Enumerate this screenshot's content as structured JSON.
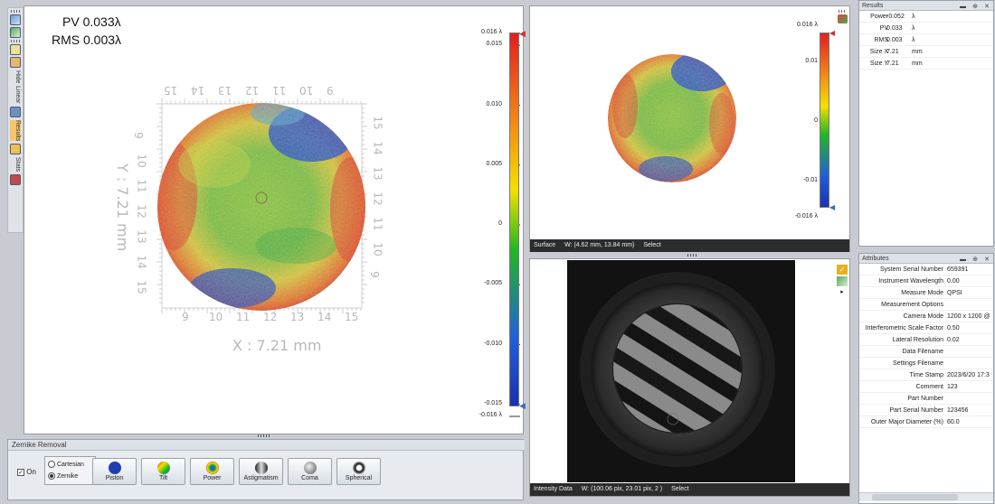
{
  "left_toolbar": {
    "items": [
      {
        "label": "Hide"
      },
      {
        "label": "Linear"
      },
      {
        "label": "Results",
        "selected": true
      },
      {
        "label": "Stats"
      }
    ]
  },
  "main_view": {
    "pv_text": "PV 0.033λ",
    "rms_text": "RMS 0.003λ",
    "x_axis_label": "X : 7.21 mm",
    "y_axis_label": "Y : 7.21 mm",
    "x_ticks": [
      "9",
      "10",
      "11",
      "12",
      "13",
      "14",
      "15"
    ],
    "x_ticks_top": [
      "15",
      "14",
      "13",
      "12",
      "11",
      "10",
      "9"
    ],
    "y_ticks": [
      "9",
      "10",
      "11",
      "12",
      "13",
      "14",
      "15"
    ],
    "y_ticks_right": [
      "15",
      "14",
      "13",
      "12",
      "11",
      "10",
      "9"
    ],
    "colorbar_ticks": [
      "0.016 λ",
      "0.015",
      "0.010",
      "0.005",
      "0",
      "-0.005",
      "-0.010",
      "-0.015",
      "-0.016 λ"
    ]
  },
  "zernike": {
    "title": "Zernike Removal",
    "on_label": "On",
    "on_checked": true,
    "modes": [
      {
        "label": "Cartesian",
        "selected": false
      },
      {
        "label": "Zernike",
        "selected": true
      }
    ],
    "buttons": [
      {
        "label": "Piston",
        "icon": "piston-icon"
      },
      {
        "label": "Tilt",
        "icon": "tilt-icon"
      },
      {
        "label": "Power",
        "icon": "power-icon"
      },
      {
        "label": "Astigmatism",
        "icon": "astigmatism-icon"
      },
      {
        "label": "Coma",
        "icon": "coma-icon"
      },
      {
        "label": "Spherical",
        "icon": "spherical-icon"
      }
    ]
  },
  "surface": {
    "status": [
      "Surface",
      "W: (4.62 mm, 13.84 mm)",
      "Select"
    ],
    "colorbar_ticks": [
      "0.016 λ",
      "0.01",
      "0",
      "-0.01",
      "-0.016 λ"
    ]
  },
  "intensity": {
    "status": [
      "Intensity Data",
      "W: (100.06 pix, 23.01 pix, 2 )",
      "Select"
    ]
  },
  "results": {
    "title": "Results",
    "rows": [
      {
        "key": "Power",
        "value": "-0.052",
        "unit": "λ"
      },
      {
        "key": "PV",
        "value": "0.033",
        "unit": "λ"
      },
      {
        "key": "RMS",
        "value": "0.003",
        "unit": "λ"
      },
      {
        "key": "Size X",
        "value": "7.21",
        "unit": "mm"
      },
      {
        "key": "Size Y",
        "value": "7.21",
        "unit": "mm"
      }
    ]
  },
  "attributes": {
    "title": "Attributes",
    "rows": [
      {
        "key": "System Serial Number",
        "value": "659391"
      },
      {
        "key": "Instrument Wavelength",
        "value": "0.00"
      },
      {
        "key": "Measure Mode",
        "value": "QPSI"
      },
      {
        "key": "Measurement Options",
        "value": ""
      },
      {
        "key": "Camera Mode",
        "value": "1200 x 1200 @"
      },
      {
        "key": "Interferometric Scale Factor",
        "value": "0.50"
      },
      {
        "key": "Lateral Resolution",
        "value": "0.02"
      },
      {
        "key": "Data Filename",
        "value": ""
      },
      {
        "key": "Settings Filename",
        "value": ""
      },
      {
        "key": "Time Stamp",
        "value": "2023/6/20 17:3"
      },
      {
        "key": "Comment",
        "value": "123"
      },
      {
        "key": "Part Number",
        "value": ""
      },
      {
        "key": "Part Serial Number",
        "value": "123456"
      },
      {
        "key": "Outer Major Diameter (%)",
        "value": "60.0"
      }
    ]
  }
}
